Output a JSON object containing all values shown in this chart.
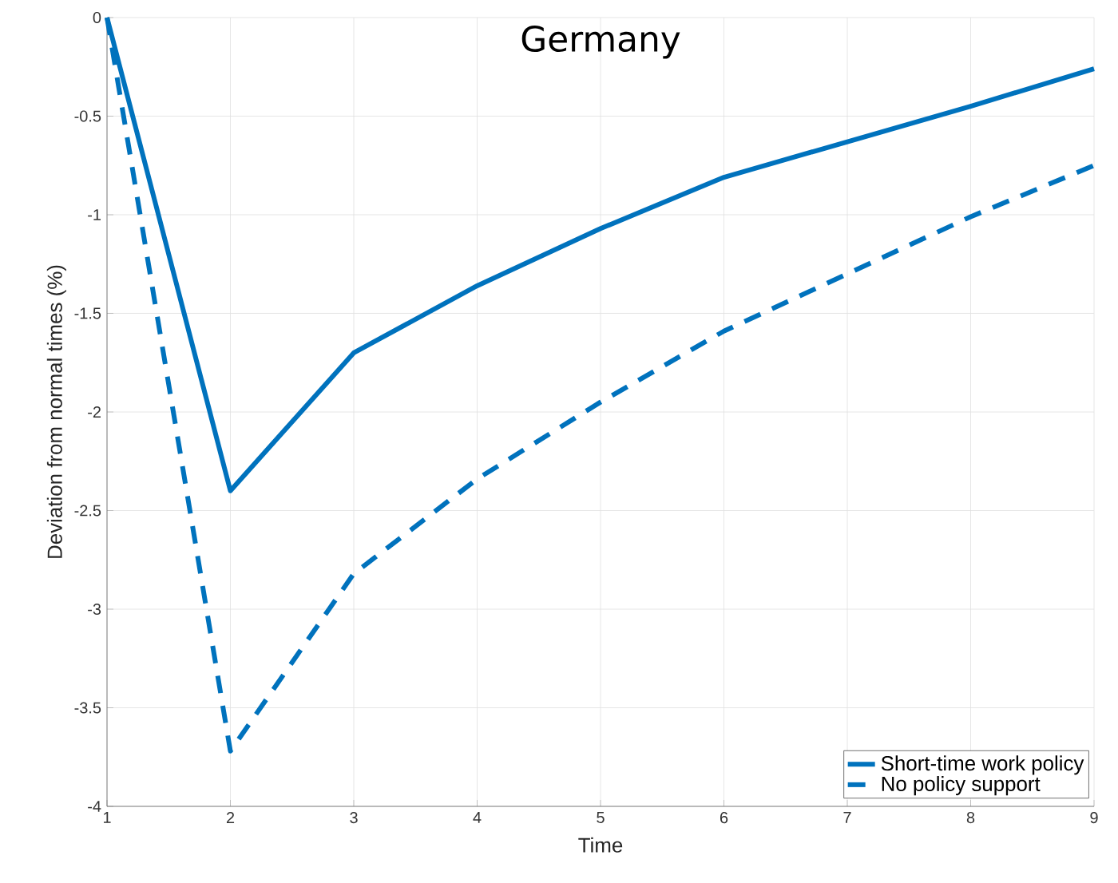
{
  "chart_data": {
    "type": "line",
    "title": "Germany",
    "xlabel": "Time",
    "ylabel": "Deviation from normal times (%)",
    "x": [
      1,
      2,
      3,
      4,
      5,
      6,
      7,
      8,
      9
    ],
    "series": [
      {
        "name": "Short-time work policy",
        "color": "#0072bd",
        "line_style": "solid",
        "values": [
          0,
          -2.4,
          -1.7,
          -1.36,
          -1.07,
          -0.81,
          -0.63,
          -0.45,
          -0.26
        ]
      },
      {
        "name": "No policy support",
        "color": "#0072bd",
        "line_style": "dashed",
        "values": [
          0,
          -3.72,
          -2.82,
          -2.34,
          -1.95,
          -1.59,
          -1.3,
          -1.01,
          -0.75
        ]
      }
    ],
    "xlim": [
      1,
      9
    ],
    "ylim": [
      -4,
      0
    ],
    "xticks": [
      1,
      2,
      3,
      4,
      5,
      6,
      7,
      8,
      9
    ],
    "yticks": [
      -4,
      -3.5,
      -3,
      -2.5,
      -2,
      -1.5,
      -1,
      -0.5,
      0
    ],
    "grid": true,
    "legend": "bottom right",
    "marker": "none"
  }
}
